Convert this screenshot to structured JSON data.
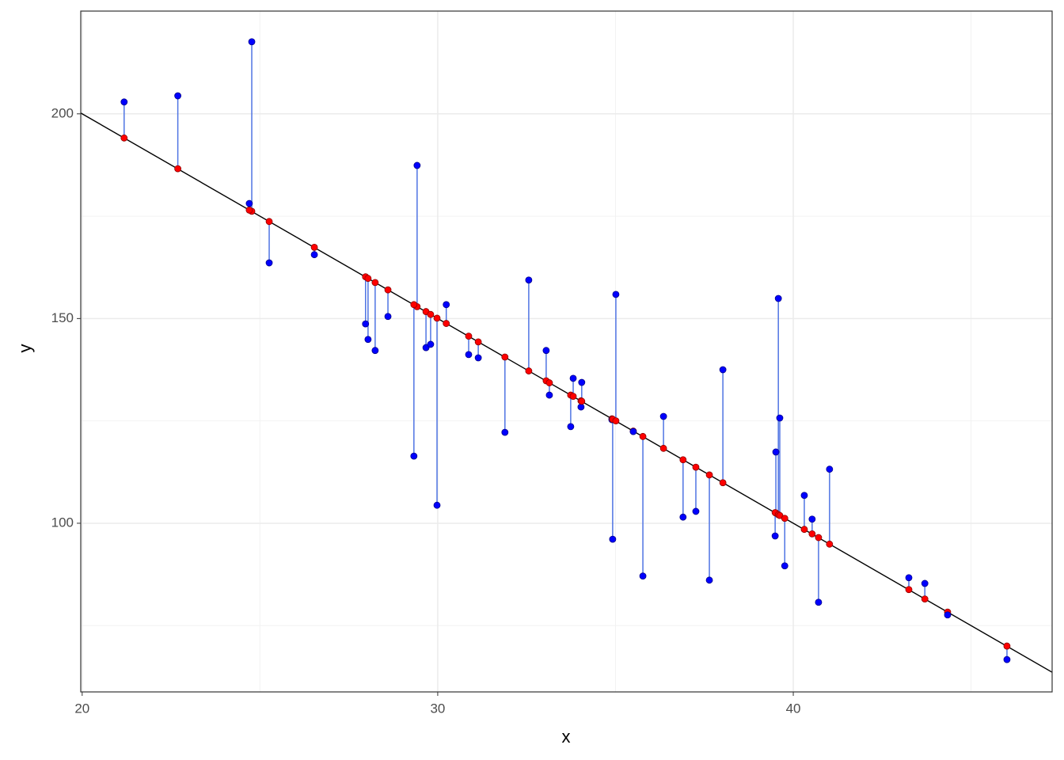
{
  "chart_data": {
    "type": "residual-scatter",
    "x_label": "x",
    "y_label": "y",
    "x": [
      21.18,
      22.69,
      24.77,
      24.7,
      25.26,
      26.53,
      27.97,
      28.04,
      28.24,
      28.6,
      29.42,
      29.33,
      29.67,
      29.8,
      29.98,
      30.24,
      30.87,
      31.14,
      31.89,
      32.56,
      33.05,
      33.14,
      33.74,
      33.81,
      34.03,
      34.05,
      34.9,
      34.92,
      35.01,
      35.5,
      35.77,
      36.35,
      36.9,
      37.26,
      37.64,
      38.02,
      39.51,
      39.49,
      39.58,
      39.62,
      39.76,
      40.31,
      40.53,
      40.71,
      41.02,
      43.25,
      43.7,
      44.34,
      46.01
    ],
    "y": [
      202.9,
      204.4,
      217.6,
      178.1,
      163.6,
      165.6,
      148.7,
      144.9,
      142.2,
      150.5,
      187.4,
      116.4,
      142.9,
      143.7,
      104.4,
      153.4,
      141.2,
      140.4,
      122.2,
      159.4,
      142.2,
      131.3,
      123.6,
      135.4,
      128.4,
      134.4,
      125.3,
      96.1,
      155.9,
      122.4,
      87.1,
      126.1,
      101.5,
      102.9,
      86.1,
      137.5,
      117.4,
      96.9,
      154.9,
      125.7,
      89.6,
      106.8,
      101.0,
      80.7,
      113.2,
      86.7,
      85.3,
      77.6,
      66.7
    ],
    "fitted": [
      194.1,
      186.6,
      176.2,
      176.5,
      173.7,
      167.4,
      160.2,
      159.8,
      158.8,
      157.0,
      152.9,
      153.4,
      151.7,
      151.0,
      150.1,
      148.8,
      145.7,
      144.3,
      140.6,
      137.2,
      134.8,
      134.3,
      131.3,
      131.0,
      129.9,
      129.8,
      125.5,
      125.4,
      125.0,
      122.5,
      121.2,
      118.3,
      115.5,
      113.7,
      111.8,
      109.9,
      102.5,
      102.6,
      102.1,
      101.9,
      101.2,
      98.5,
      97.4,
      96.5,
      94.9,
      83.8,
      81.5,
      78.3,
      70.0
    ],
    "fit_line": {
      "x": [
        19.96,
        47.28
      ],
      "y": [
        200.2,
        63.6
      ]
    },
    "xlim": [
      19.96,
      47.28
    ],
    "ylim": [
      58.8,
      225.1
    ],
    "xticks": [
      20,
      30,
      40
    ],
    "yticks": [
      100,
      150,
      200
    ],
    "x_minor_ticks": [
      25,
      35,
      45
    ],
    "y_minor_ticks": [
      75,
      125,
      175
    ],
    "grid": true,
    "point_color": "blue",
    "fit_color": "red",
    "segment_color": "#4f74e3",
    "line_color": "black"
  }
}
